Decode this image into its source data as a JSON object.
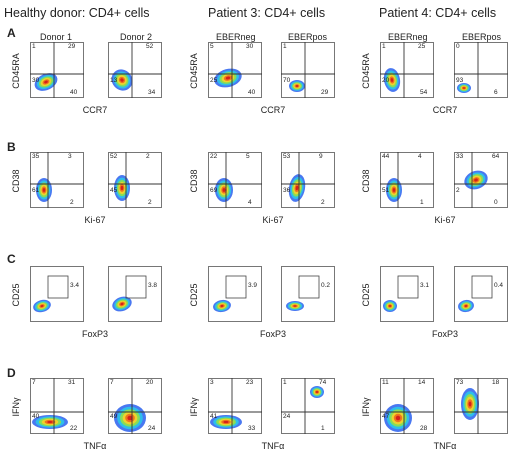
{
  "headers": [
    "Healthy donor: CD4+ cells",
    "Patient 3: CD4+ cells",
    "Patient 4: CD4+ cells"
  ],
  "row_labels": [
    "A",
    "B",
    "C",
    "D"
  ],
  "subtitles": [
    "Donor 1",
    "Donor 2",
    "EBERneg",
    "EBERpos",
    "EBERneg",
    "EBERpos"
  ],
  "rows": [
    {
      "y_axis": "CD45RA",
      "x_axis": "CCR7",
      "type": "quad",
      "panels": [
        {
          "tl": "1",
          "tr": "29",
          "bl": "30",
          "br": "40"
        },
        {
          "tl": "",
          "tr": "52",
          "bl": "13",
          "br": "34"
        },
        {
          "tl": "5",
          "tr": "30",
          "bl": "25",
          "br": "40"
        },
        {
          "tl": "1",
          "tr": "",
          "bl": "70",
          "br": "29"
        },
        {
          "tl": "1",
          "tr": "25",
          "bl": "20",
          "br": "54"
        },
        {
          "tl": "0",
          "tr": "",
          "bl": "93",
          "br": "6"
        }
      ]
    },
    {
      "y_axis": "CD38",
      "x_axis": "Ki-67",
      "type": "quad",
      "panels": [
        {
          "tl": "35",
          "tr": "3",
          "bl": "61",
          "br": "2"
        },
        {
          "tl": "52",
          "tr": "2",
          "bl": "45",
          "br": "2"
        },
        {
          "tl": "22",
          "tr": "5",
          "bl": "69",
          "br": "4"
        },
        {
          "tl": "53",
          "tr": "9",
          "bl": "36",
          "br": "2"
        },
        {
          "tl": "44",
          "tr": "4",
          "bl": "51",
          "br": "1"
        },
        {
          "tl": "33",
          "tr": "64",
          "bl": "2",
          "br": "0"
        }
      ]
    },
    {
      "y_axis": "CD25",
      "x_axis": "FoxP3",
      "type": "gate",
      "panels": [
        {
          "gate": "3.4"
        },
        {
          "gate": "3.8"
        },
        {
          "gate": "3.9"
        },
        {
          "gate": "0.2"
        },
        {
          "gate": "3.1"
        },
        {
          "gate": "0.4"
        }
      ]
    },
    {
      "y_axis": "IFNγ",
      "x_axis": "TNFα",
      "type": "quad",
      "panels": [
        {
          "tl": "7",
          "tr": "31",
          "bl": "40",
          "br": "22"
        },
        {
          "tl": "7",
          "tr": "20",
          "bl": "49",
          "br": "24"
        },
        {
          "tl": "3",
          "tr": "23",
          "bl": "41",
          "br": "33"
        },
        {
          "tl": "1",
          "tr": "74",
          "bl": "24",
          "br": "1"
        },
        {
          "tl": "11",
          "tr": "14",
          "bl": "47",
          "br": "28"
        },
        {
          "tl": "73",
          "tr": "18",
          "bl": "",
          "br": ""
        }
      ]
    }
  ]
}
